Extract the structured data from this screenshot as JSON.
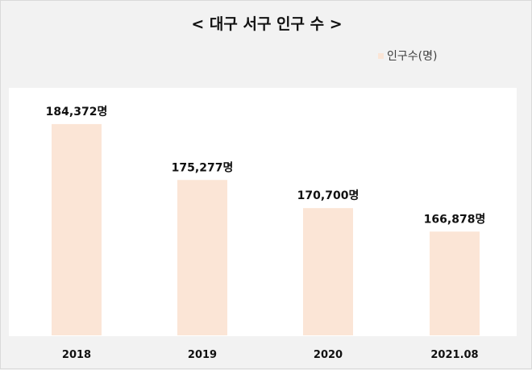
{
  "chart_data": {
    "type": "bar",
    "title": "< 대구 서구 인구 수 >",
    "categories": [
      "2018",
      "2019",
      "2020",
      "2021.08"
    ],
    "series": [
      {
        "name": "인구수(명)",
        "values": [
          184372,
          175277,
          170700,
          166878
        ],
        "data_labels": [
          "184,372명",
          "175,277명",
          "170,700명",
          "166,878명"
        ]
      }
    ],
    "xlabel": "",
    "ylabel": "",
    "ylim": [
      150000,
      190000
    ],
    "grid": false,
    "legend_position": "top-right",
    "bar_color": "#fbe5d6"
  }
}
